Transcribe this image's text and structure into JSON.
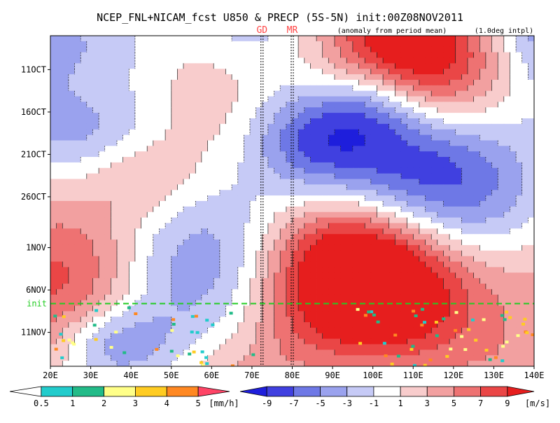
{
  "chart_data": {
    "type": "heatmap",
    "title": "NCEP_FNL+NICAM_fcst U850 & PRECP (5S-5N) init:00Z08NOV2011",
    "subtitle_anomaly": "(anomaly from period mean)",
    "subtitle_interp": "(1.0deg intpl)",
    "x_ticks": [
      "20E",
      "30E",
      "40E",
      "50E",
      "60E",
      "70E",
      "80E",
      "90E",
      "100E",
      "110E",
      "120E",
      "130E",
      "140E"
    ],
    "x_tick_values": [
      20,
      30,
      40,
      50,
      60,
      70,
      80,
      90,
      100,
      110,
      120,
      130,
      140
    ],
    "xlim": [
      20,
      140
    ],
    "y_ticks": [
      "11OCT",
      "16OCT",
      "21OCT",
      "26OCT",
      "1NOV",
      "6NOV",
      "11NOV"
    ],
    "y_tick_days": [
      4,
      9,
      14,
      19,
      25,
      30,
      35
    ],
    "ylim_days": [
      0,
      39
    ],
    "y_direction": "time increases downward",
    "vertical_markers": [
      {
        "label": "GD",
        "lon": 72.5
      },
      {
        "label": "MR",
        "lon": 80
      }
    ],
    "marker_color": "#ff4444",
    "init_line": {
      "label": "init",
      "day": 31.6,
      "color": "#22cc22"
    },
    "precip_legend": {
      "unit": "[mm/h]",
      "labels": [
        "0.5",
        "1",
        "2",
        "3",
        "4",
        "5"
      ],
      "colors": [
        "#ffffff",
        "#22cccc",
        "#22bb88",
        "#ffff88",
        "#ffcc22",
        "#ff8822",
        "#ff4466"
      ]
    },
    "wind_legend": {
      "unit": "[m/s]",
      "labels": [
        "-9",
        "-7",
        "-5",
        "-3",
        "-1",
        "1",
        "3",
        "5",
        "7",
        "9"
      ],
      "colors": [
        "#1e1edc",
        "#4040e0",
        "#6e78e6",
        "#9aa2ee",
        "#c6caf6",
        "#ffffff",
        "#f8cccc",
        "#f2a0a0",
        "#ee7272",
        "#ea4646",
        "#e61e1e"
      ]
    }
  }
}
